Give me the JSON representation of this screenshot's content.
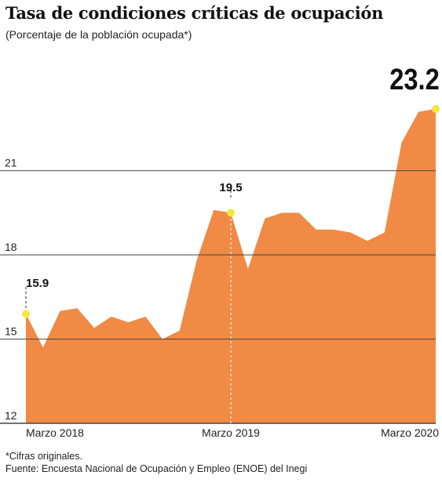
{
  "title": "Tasa de condiciones críticas de ocupación",
  "subtitle": "(Porcentaje de la población ocupada*)",
  "footnote": "*Cifras originales.",
  "source": "Fuente: Encuesta Nacional de Ocupación y Empleo (ENOE) del Inegi",
  "chart_data": {
    "type": "area",
    "x": [
      "2018-03",
      "2018-04",
      "2018-05",
      "2018-06",
      "2018-07",
      "2018-08",
      "2018-09",
      "2018-10",
      "2018-11",
      "2018-12",
      "2019-01",
      "2019-02",
      "2019-03",
      "2019-04",
      "2019-05",
      "2019-06",
      "2019-07",
      "2019-08",
      "2019-09",
      "2019-10",
      "2019-11",
      "2019-12",
      "2020-01",
      "2020-02",
      "2020-03"
    ],
    "values": [
      15.9,
      14.7,
      16.0,
      16.1,
      15.4,
      15.8,
      15.6,
      15.8,
      15.0,
      15.3,
      17.8,
      19.6,
      19.5,
      17.5,
      19.3,
      19.5,
      19.5,
      18.9,
      18.9,
      18.8,
      18.5,
      18.8,
      22.0,
      23.1,
      23.2
    ],
    "xticks": [
      {
        "index": 0,
        "label": "Marzo 2018"
      },
      {
        "index": 12,
        "label": "Marzo 2019"
      },
      {
        "index": 24,
        "label": "Marzo 2020"
      }
    ],
    "yticks": [
      12,
      15,
      18,
      21
    ],
    "ylim": [
      12,
      24.4
    ],
    "callouts": [
      {
        "index": 0,
        "label": "15.9"
      },
      {
        "index": 12,
        "label": "19.5"
      },
      {
        "index": 24,
        "label": "23.2"
      }
    ],
    "colors": {
      "area": "#f08a45",
      "marker": "#f5e83c",
      "grid": "#444444"
    },
    "grid": true,
    "xlabel": "",
    "ylabel": ""
  }
}
